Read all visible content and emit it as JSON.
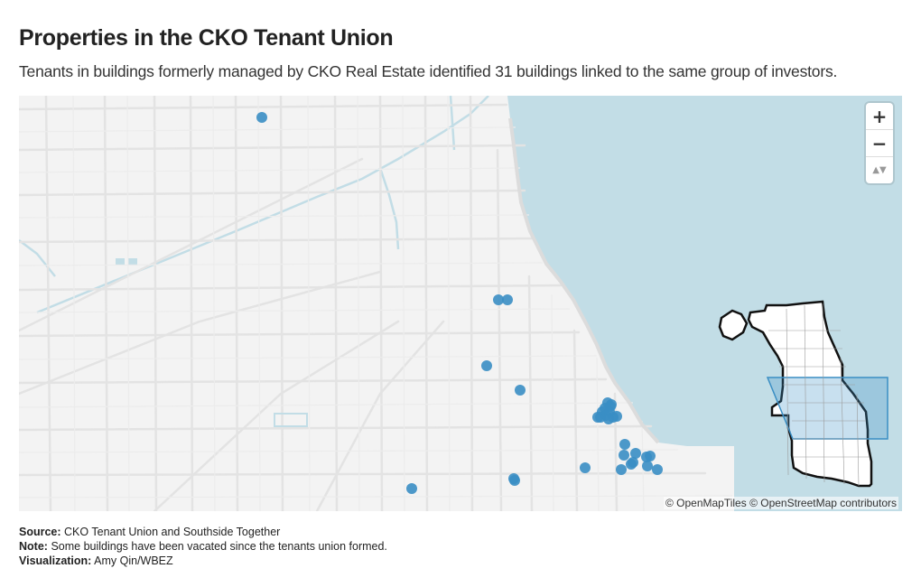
{
  "header": {
    "title": "Properties in the CKO Tenant Union",
    "subtitle": "Tenants in buildings formerly managed by CKO Real Estate identified 31 buildings linked to the same group of investors."
  },
  "map": {
    "zoom_in_label": "+",
    "zoom_out_label": "−",
    "reset_label": "▲▼",
    "attribution": "© OpenMapTiles © OpenStreetMap contributors",
    "colors": {
      "water": "#c2dde6",
      "land": "#f3f3f3",
      "roads": "#e2e2e2",
      "points": "#3a8ec4"
    },
    "property_count": 31
  },
  "footer": {
    "source_label": "Source:",
    "source_text": "CKO Tenant Union and Southside Together",
    "note_label": "Note:",
    "note_text": "Some buildings have been vacated since the tenants union formed.",
    "viz_label": "Visualization:",
    "viz_text": "Amy Qin/WBEZ"
  }
}
